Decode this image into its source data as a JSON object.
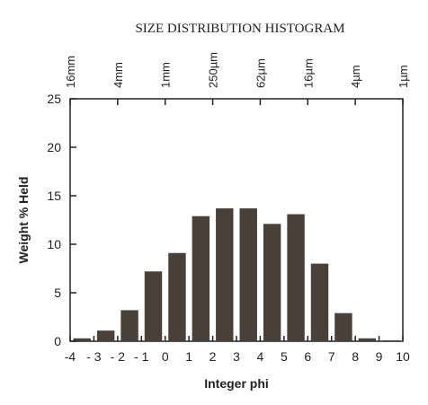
{
  "chart_data": {
    "type": "bar",
    "title": "SIZE DISTRIBUTION HISTOGRAM",
    "xlabel": "Integer phi",
    "ylabel": "Weight % Held",
    "top_axis_ticks": [
      "16mm",
      "4mm",
      "1mm",
      "250µm",
      "62µm",
      "16µm",
      "4µm",
      "1µm"
    ],
    "x_ticks": [
      "-4",
      "- 3",
      "- 2",
      "- 1",
      "0",
      "1",
      "2",
      "3",
      "4",
      "5",
      "6",
      "7",
      "8",
      "9",
      "10"
    ],
    "y_ticks": [
      "0",
      "5",
      "10",
      "15",
      "20",
      "25"
    ],
    "ylim": [
      0,
      25
    ],
    "xlim": [
      -4,
      10
    ],
    "bins": [
      {
        "from": -4,
        "to": -3,
        "value": 0.3
      },
      {
        "from": -3,
        "to": -2,
        "value": 1.1
      },
      {
        "from": -2,
        "to": -1,
        "value": 3.2
      },
      {
        "from": -1,
        "to": 0,
        "value": 7.2
      },
      {
        "from": 0,
        "to": 1,
        "value": 9.1
      },
      {
        "from": 1,
        "to": 2,
        "value": 12.9
      },
      {
        "from": 2,
        "to": 3,
        "value": 13.7
      },
      {
        "from": 3,
        "to": 4,
        "value": 13.7
      },
      {
        "from": 4,
        "to": 5,
        "value": 12.1
      },
      {
        "from": 5,
        "to": 6,
        "value": 13.1
      },
      {
        "from": 6,
        "to": 7,
        "value": 8.0
      },
      {
        "from": 7,
        "to": 8,
        "value": 2.9
      },
      {
        "from": 8,
        "to": 9,
        "value": 0.3
      },
      {
        "from": 9,
        "to": 10,
        "value": 0.1
      }
    ],
    "bar_color": "#4a403a",
    "grid": false
  }
}
